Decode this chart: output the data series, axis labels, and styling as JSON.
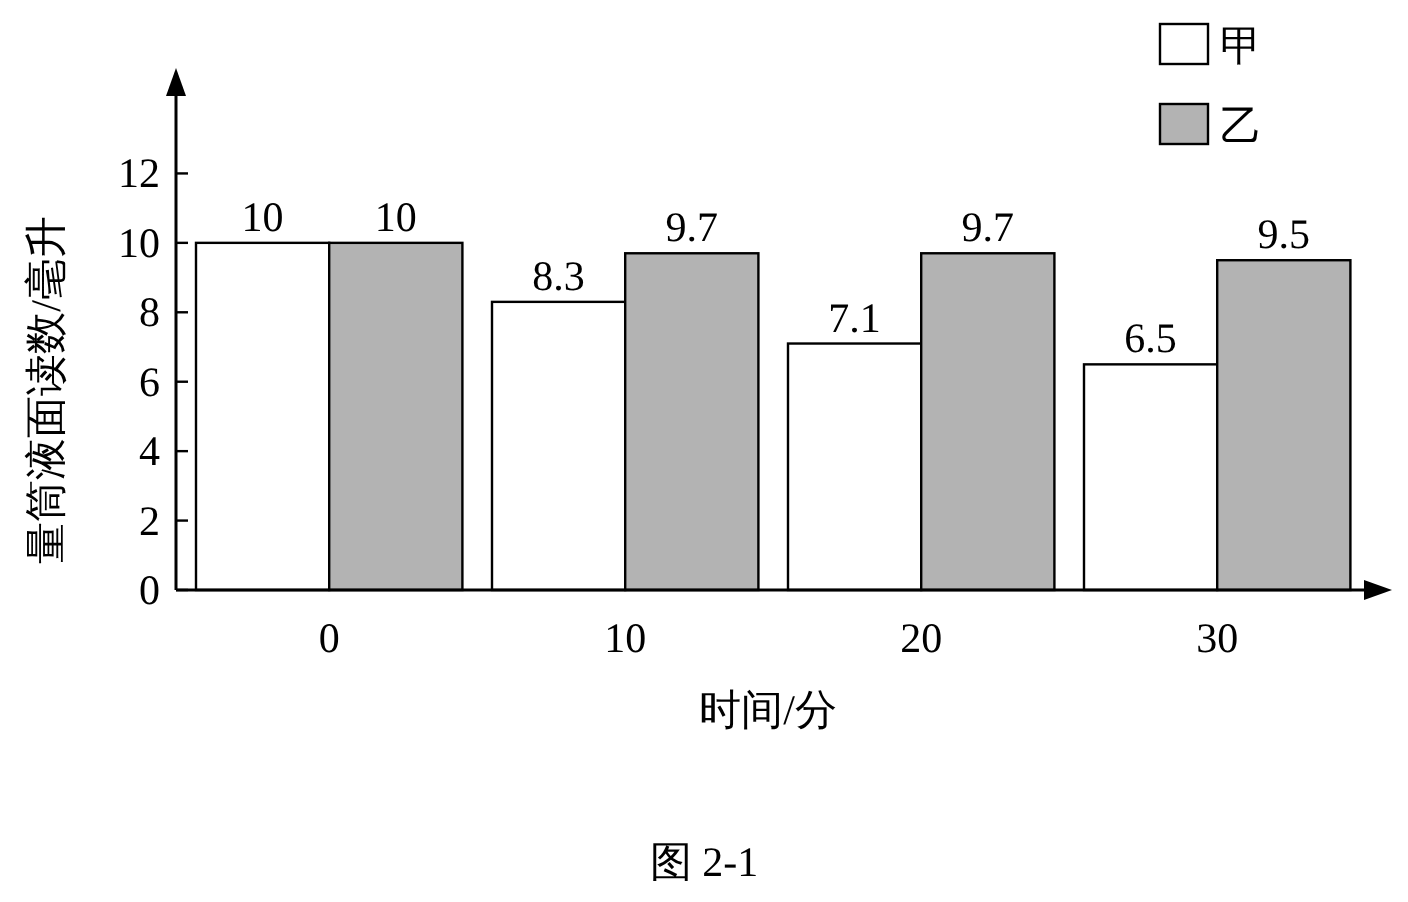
{
  "chart_data": {
    "type": "bar",
    "categories": [
      "0",
      "10",
      "20",
      "30"
    ],
    "series": [
      {
        "name": "甲",
        "color": "#ffffff",
        "values": [
          10,
          8.3,
          7.1,
          6.5
        ]
      },
      {
        "name": "乙",
        "color": "#b3b3b3",
        "values": [
          10,
          9.7,
          9.7,
          9.5
        ]
      }
    ],
    "xlabel": "时间/分",
    "ylabel": "量筒液面读数/毫升",
    "ylim": [
      0,
      14
    ],
    "yticks": [
      0,
      2,
      4,
      6,
      8,
      10,
      12
    ],
    "data_labels": true,
    "legend": "top right",
    "annotations": [
      "图 2-1"
    ]
  }
}
